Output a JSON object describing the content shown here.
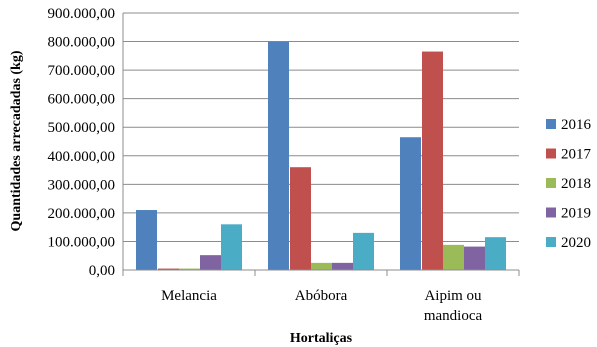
{
  "chart_data": {
    "type": "bar",
    "categories": [
      [
        "Melancia"
      ],
      [
        "Abóbora"
      ],
      [
        "Aipim ou",
        "mandioca"
      ]
    ],
    "series": [
      {
        "name": "2016",
        "color": "#4F81BD",
        "values": [
          210000,
          800000,
          465000
        ]
      },
      {
        "name": "2017",
        "color": "#C0504D",
        "values": [
          5000,
          360000,
          765000
        ]
      },
      {
        "name": "2018",
        "color": "#9BBB59",
        "values": [
          5000,
          25000,
          88000
        ]
      },
      {
        "name": "2019",
        "color": "#8064A2",
        "values": [
          52000,
          25000,
          82000
        ]
      },
      {
        "name": "2020",
        "color": "#4BACC6",
        "values": [
          160000,
          130000,
          115000
        ]
      }
    ],
    "xlabel": "Hortaliças",
    "ylabel": "Quantidades arrecadadas (kg)",
    "ylim": [
      0,
      900000
    ],
    "yticks": [
      "0,00",
      "100.000,00",
      "200.000,00",
      "300.000,00",
      "400.000,00",
      "500.000,00",
      "600.000,00",
      "700.000,00",
      "800.000,00",
      "900.000,00"
    ],
    "grid": true,
    "legend": "right"
  }
}
